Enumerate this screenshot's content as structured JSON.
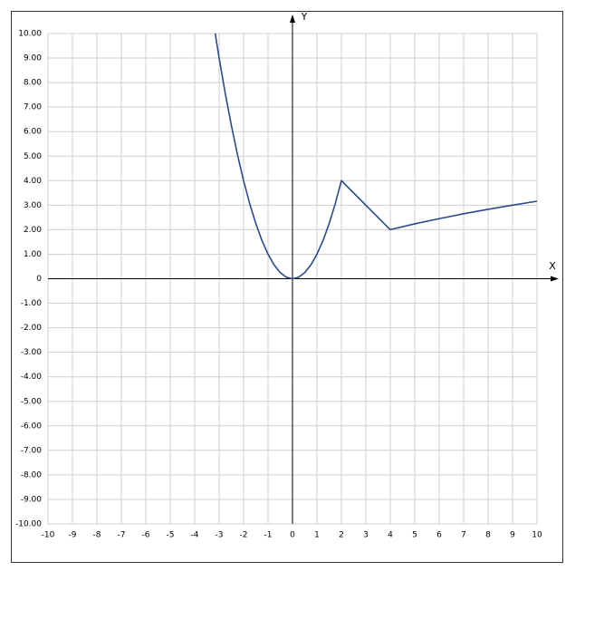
{
  "chart_data": {
    "type": "line",
    "x_label": "X",
    "y_label": "Y",
    "color": "#2b4a8b",
    "grid": true,
    "x": [
      -3.16,
      -3,
      -2.75,
      -2.5,
      -2.25,
      -2,
      -1.75,
      -1.5,
      -1.25,
      -1,
      -0.75,
      -0.5,
      -0.25,
      0,
      0.25,
      0.5,
      0.75,
      1,
      1.25,
      1.5,
      1.75,
      2,
      4,
      5,
      6,
      7,
      8,
      9,
      10
    ],
    "values": [
      10,
      9,
      7.56,
      6.25,
      5.06,
      4,
      3.06,
      2.25,
      1.56,
      1,
      0.56,
      0.25,
      0.06,
      0,
      0.06,
      0.25,
      0.56,
      1,
      1.56,
      2.25,
      3.06,
      4,
      2,
      2.24,
      2.45,
      2.65,
      2.83,
      3,
      3.16
    ],
    "xlim": [
      -10,
      10
    ],
    "ylim": [
      -10,
      10
    ],
    "xticks": [
      -10,
      -9,
      -8,
      -7,
      -6,
      -5,
      -4,
      -3,
      -2,
      -1,
      0,
      1,
      2,
      3,
      4,
      5,
      6,
      7,
      8,
      9,
      10
    ],
    "yticks": [
      {
        "value": -10,
        "label": "-10.00"
      },
      {
        "value": -9,
        "label": "-9.00"
      },
      {
        "value": -8,
        "label": "-8.00"
      },
      {
        "value": -7,
        "label": "-7.00"
      },
      {
        "value": -6,
        "label": "-6.00"
      },
      {
        "value": -5,
        "label": "-5.00"
      },
      {
        "value": -4,
        "label": "-4.00"
      },
      {
        "value": -3,
        "label": "-3.00"
      },
      {
        "value": -2,
        "label": "-2.00"
      },
      {
        "value": -1,
        "label": "-1.00"
      },
      0,
      {
        "value": 1,
        "label": "1.00"
      },
      {
        "value": 2,
        "label": "2.00"
      },
      {
        "value": 3,
        "label": "3.00"
      },
      {
        "value": 4,
        "label": "4.00"
      },
      {
        "value": 5,
        "label": "5.00"
      },
      {
        "value": 6,
        "label": "6.00"
      },
      {
        "value": 7,
        "label": "7.00"
      },
      {
        "value": 8,
        "label": "8.00"
      },
      {
        "value": 9,
        "label": "9.00"
      },
      {
        "value": 10,
        "label": "10.00"
      }
    ]
  }
}
